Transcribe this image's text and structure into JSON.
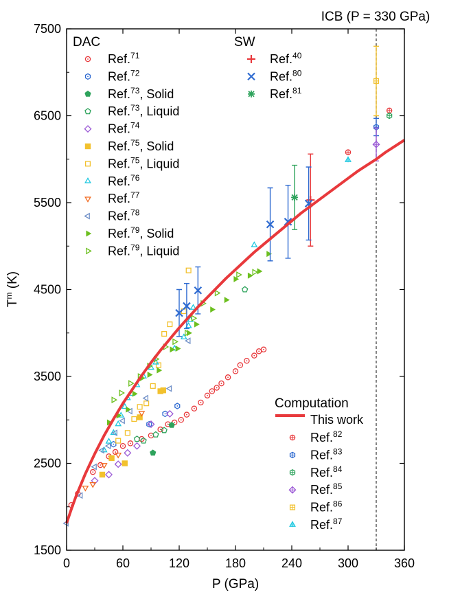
{
  "chart_data": {
    "type": "scatter",
    "xlabel": "P (GPa)",
    "ylabel_main": "T",
    "ylabel_sup": "m",
    "ylabel_unit": " (K)",
    "xlim": [
      0,
      360
    ],
    "ylim": [
      1500,
      7500
    ],
    "xticks": [
      0,
      60,
      120,
      180,
      240,
      300,
      360
    ],
    "yticks": [
      1500,
      2500,
      3500,
      4500,
      5500,
      6500,
      7500
    ],
    "grid": false,
    "icb": {
      "label": "ICB (P = 330 GPa)",
      "x": 330
    },
    "legend_groups": {
      "dac": "DAC",
      "sw": "SW",
      "computation": "Computation"
    },
    "this_work": {
      "label": "This work",
      "color": "#e8393c",
      "x": [
        0,
        5,
        10,
        20,
        30,
        40,
        50,
        60,
        70,
        80,
        90,
        100,
        110,
        120,
        130,
        140,
        150,
        160,
        170,
        180,
        190,
        200,
        210,
        220,
        230,
        240,
        250,
        260,
        270,
        280,
        290,
        300,
        310,
        320,
        330,
        340,
        350,
        360
      ],
      "y": [
        1811,
        1970,
        2120,
        2380,
        2610,
        2820,
        3010,
        3190,
        3350,
        3510,
        3660,
        3800,
        3930,
        4060,
        4180,
        4300,
        4410,
        4520,
        4630,
        4730,
        4830,
        4930,
        5020,
        5110,
        5200,
        5290,
        5380,
        5460,
        5540,
        5620,
        5700,
        5780,
        5860,
        5930,
        6000,
        6080,
        6150,
        6220
      ]
    },
    "series": [
      {
        "group": "dac",
        "name": "Ref.",
        "sup": "71",
        "suffix": "",
        "marker": "circle-dot",
        "color": "#e8393c",
        "points": [
          [
            5,
            2020
          ],
          [
            12,
            2150
          ],
          [
            28,
            2400
          ],
          [
            36,
            2480
          ],
          [
            45,
            2580
          ],
          [
            52,
            2630
          ],
          [
            60,
            2700
          ],
          [
            68,
            2730
          ],
          [
            80,
            2780
          ],
          [
            90,
            2820
          ],
          [
            100,
            2890
          ],
          [
            108,
            2950
          ],
          [
            115,
            2970
          ],
          [
            122,
            3000
          ],
          [
            128,
            3060
          ],
          [
            136,
            3130
          ],
          [
            143,
            3200
          ],
          [
            150,
            3280
          ],
          [
            155,
            3330
          ],
          [
            160,
            3370
          ],
          [
            165,
            3420
          ],
          [
            172,
            3490
          ],
          [
            180,
            3560
          ],
          [
            185,
            3630
          ],
          [
            192,
            3680
          ],
          [
            200,
            3740
          ],
          [
            205,
            3790
          ],
          [
            210,
            3810
          ]
        ]
      },
      {
        "group": "dac",
        "name": "Ref.",
        "sup": "72",
        "suffix": "",
        "marker": "hex-dot",
        "color": "#2f6bd1",
        "points": [
          [
            50,
            2720
          ],
          [
            88,
            2950
          ],
          [
            105,
            3070
          ],
          [
            118,
            3160
          ]
        ]
      },
      {
        "group": "dac",
        "name": "Ref.",
        "sup": "73",
        "suffix": ", Solid",
        "marker": "pentagon-filled",
        "color": "#2ea35c",
        "points": [
          [
            92,
            2620
          ],
          [
            112,
            2940
          ]
        ]
      },
      {
        "group": "dac",
        "name": "Ref.",
        "sup": "73",
        "suffix": ", Liquid",
        "marker": "pentagon-open",
        "color": "#2ea35c",
        "points": [
          [
            75,
            2780
          ],
          [
            82,
            2760
          ],
          [
            95,
            2830
          ],
          [
            104,
            2880
          ],
          [
            190,
            4500
          ]
        ]
      },
      {
        "group": "dac",
        "name": "Ref.",
        "sup": "74",
        "suffix": "",
        "marker": "diamond-open",
        "color": "#9b59d6",
        "points": [
          [
            30,
            2300
          ],
          [
            45,
            2370
          ],
          [
            55,
            2490
          ],
          [
            65,
            2620
          ],
          [
            75,
            2700
          ],
          [
            90,
            2950
          ],
          [
            110,
            3070
          ]
        ]
      },
      {
        "group": "dac",
        "name": "Ref.",
        "sup": "75",
        "suffix": ", Solid",
        "marker": "square-filled",
        "color": "#f2c12e",
        "points": [
          [
            38,
            2370
          ],
          [
            48,
            2560
          ],
          [
            62,
            2500
          ],
          [
            78,
            3030
          ],
          [
            100,
            3330
          ],
          [
            103,
            3340
          ]
        ]
      },
      {
        "group": "dac",
        "name": "Ref.",
        "sup": "75",
        "suffix": ", Liquid",
        "marker": "square-open",
        "color": "#f2c12e",
        "points": [
          [
            55,
            2760
          ],
          [
            65,
            2850
          ],
          [
            72,
            3010
          ],
          [
            78,
            3150
          ],
          [
            85,
            3190
          ],
          [
            92,
            3390
          ],
          [
            98,
            3630
          ],
          [
            104,
            3990
          ],
          [
            110,
            4100
          ],
          [
            125,
            4250
          ],
          [
            130,
            4720
          ]
        ]
      },
      {
        "group": "dac",
        "name": "Ref.",
        "sup": "76",
        "suffix": "",
        "marker": "triangle-open",
        "color": "#1ec8e0",
        "points": [
          [
            40,
            2650
          ],
          [
            45,
            2750
          ],
          [
            50,
            2850
          ],
          [
            55,
            2950
          ],
          [
            58,
            3050
          ],
          [
            62,
            3150
          ],
          [
            65,
            3250
          ],
          [
            70,
            3300
          ],
          [
            75,
            3400
          ],
          [
            82,
            3500
          ],
          [
            90,
            3600
          ],
          [
            95,
            3660
          ],
          [
            115,
            3820
          ],
          [
            125,
            3950
          ],
          [
            130,
            4080
          ],
          [
            132,
            4150
          ],
          [
            135,
            4290
          ],
          [
            200,
            5010
          ]
        ]
      },
      {
        "group": "dac",
        "name": "Ref.",
        "sup": "77",
        "suffix": "",
        "marker": "triangle-down-open",
        "color": "#f26b21",
        "points": [
          [
            20,
            2220
          ],
          [
            28,
            2260
          ],
          [
            40,
            2480
          ],
          [
            55,
            2600
          ],
          [
            80,
            3080
          ]
        ]
      },
      {
        "group": "dac",
        "name": "Ref.",
        "sup": "78",
        "suffix": "",
        "marker": "triangle-left-open",
        "color": "#6f8fc7",
        "points": [
          [
            0,
            1810
          ],
          [
            15,
            2130
          ],
          [
            30,
            2460
          ],
          [
            38,
            2650
          ],
          [
            45,
            2700
          ],
          [
            52,
            2850
          ],
          [
            60,
            2990
          ],
          [
            68,
            3100
          ],
          [
            85,
            3250
          ],
          [
            110,
            3360
          ],
          [
            130,
            3910
          ]
        ]
      },
      {
        "group": "dac",
        "name": "Ref.",
        "sup": "79",
        "suffix": ", Solid",
        "marker": "triangle-right-filled",
        "color": "#6cbf1f",
        "points": [
          [
            45,
            2970
          ],
          [
            55,
            3050
          ],
          [
            65,
            3120
          ],
          [
            72,
            3300
          ],
          [
            80,
            3480
          ],
          [
            88,
            3520
          ],
          [
            98,
            3570
          ],
          [
            112,
            3810
          ],
          [
            118,
            3820
          ],
          [
            130,
            4000
          ],
          [
            138,
            4100
          ],
          [
            155,
            4270
          ],
          [
            170,
            4380
          ],
          [
            180,
            4620
          ],
          [
            195,
            4660
          ],
          [
            205,
            4710
          ],
          [
            215,
            4910
          ]
        ]
      },
      {
        "group": "dac",
        "name": "Ref.",
        "sup": "79",
        "suffix": ", Liquid",
        "marker": "triangle-right-open",
        "color": "#6cbf1f",
        "points": [
          [
            50,
            3230
          ],
          [
            58,
            3310
          ],
          [
            68,
            3420
          ],
          [
            78,
            3500
          ],
          [
            88,
            3620
          ],
          [
            95,
            3700
          ],
          [
            105,
            3840
          ],
          [
            115,
            3900
          ],
          [
            128,
            4000
          ],
          [
            135,
            4170
          ],
          [
            145,
            4340
          ],
          [
            160,
            4460
          ],
          [
            183,
            4670
          ],
          [
            200,
            4700
          ]
        ]
      },
      {
        "group": "sw",
        "name": "Ref.",
        "sup": "40",
        "suffix": "",
        "marker": "plus",
        "color": "#e8393c",
        "points": [
          [
            260,
            5530
          ]
        ],
        "errors": [
          530
        ]
      },
      {
        "group": "sw",
        "name": "Ref.",
        "sup": "80",
        "suffix": "",
        "marker": "cross",
        "color": "#2f6bd1",
        "points": [
          [
            120,
            4230
          ],
          [
            128,
            4310
          ],
          [
            140,
            4490
          ],
          [
            217,
            5250
          ],
          [
            236,
            5280
          ],
          [
            258,
            5490
          ]
        ],
        "errors": [
          270,
          260,
          270,
          420,
          420,
          420
        ]
      },
      {
        "group": "sw",
        "name": "Ref.",
        "sup": "81",
        "suffix": "",
        "marker": "asterisk",
        "color": "#2ea35c",
        "points": [
          [
            243,
            5560
          ]
        ],
        "errors": [
          370
        ]
      },
      {
        "group": "comp",
        "name": "Ref.",
        "sup": "82",
        "suffix": "",
        "marker": "circle-plus",
        "color": "#e8393c",
        "points": [
          [
            300,
            6080
          ],
          [
            344,
            6560
          ]
        ]
      },
      {
        "group": "comp",
        "name": "Ref.",
        "sup": "83",
        "suffix": "",
        "marker": "hex-plus",
        "color": "#2f6bd1",
        "points": [
          [
            330,
            6370
          ]
        ],
        "errors": [
          100
        ]
      },
      {
        "group": "comp",
        "name": "Ref.",
        "sup": "84",
        "suffix": "",
        "marker": "hex-plus",
        "color": "#2ea35c",
        "points": [
          [
            344,
            6500
          ]
        ]
      },
      {
        "group": "comp",
        "name": "Ref.",
        "sup": "85",
        "suffix": "",
        "marker": "diamond-plus",
        "color": "#9b59d6",
        "points": [
          [
            330,
            6170
          ]
        ],
        "errors": [
          190
        ]
      },
      {
        "group": "comp",
        "name": "Ref.",
        "sup": "86",
        "suffix": "",
        "marker": "square-plus",
        "color": "#f2c12e",
        "points": [
          [
            330,
            6900
          ]
        ],
        "errors": [
          400
        ]
      },
      {
        "group": "comp",
        "name": "Ref.",
        "sup": "87",
        "suffix": "",
        "marker": "triangle-plus",
        "color": "#1ec8e0",
        "points": [
          [
            300,
            5990
          ]
        ]
      }
    ]
  }
}
